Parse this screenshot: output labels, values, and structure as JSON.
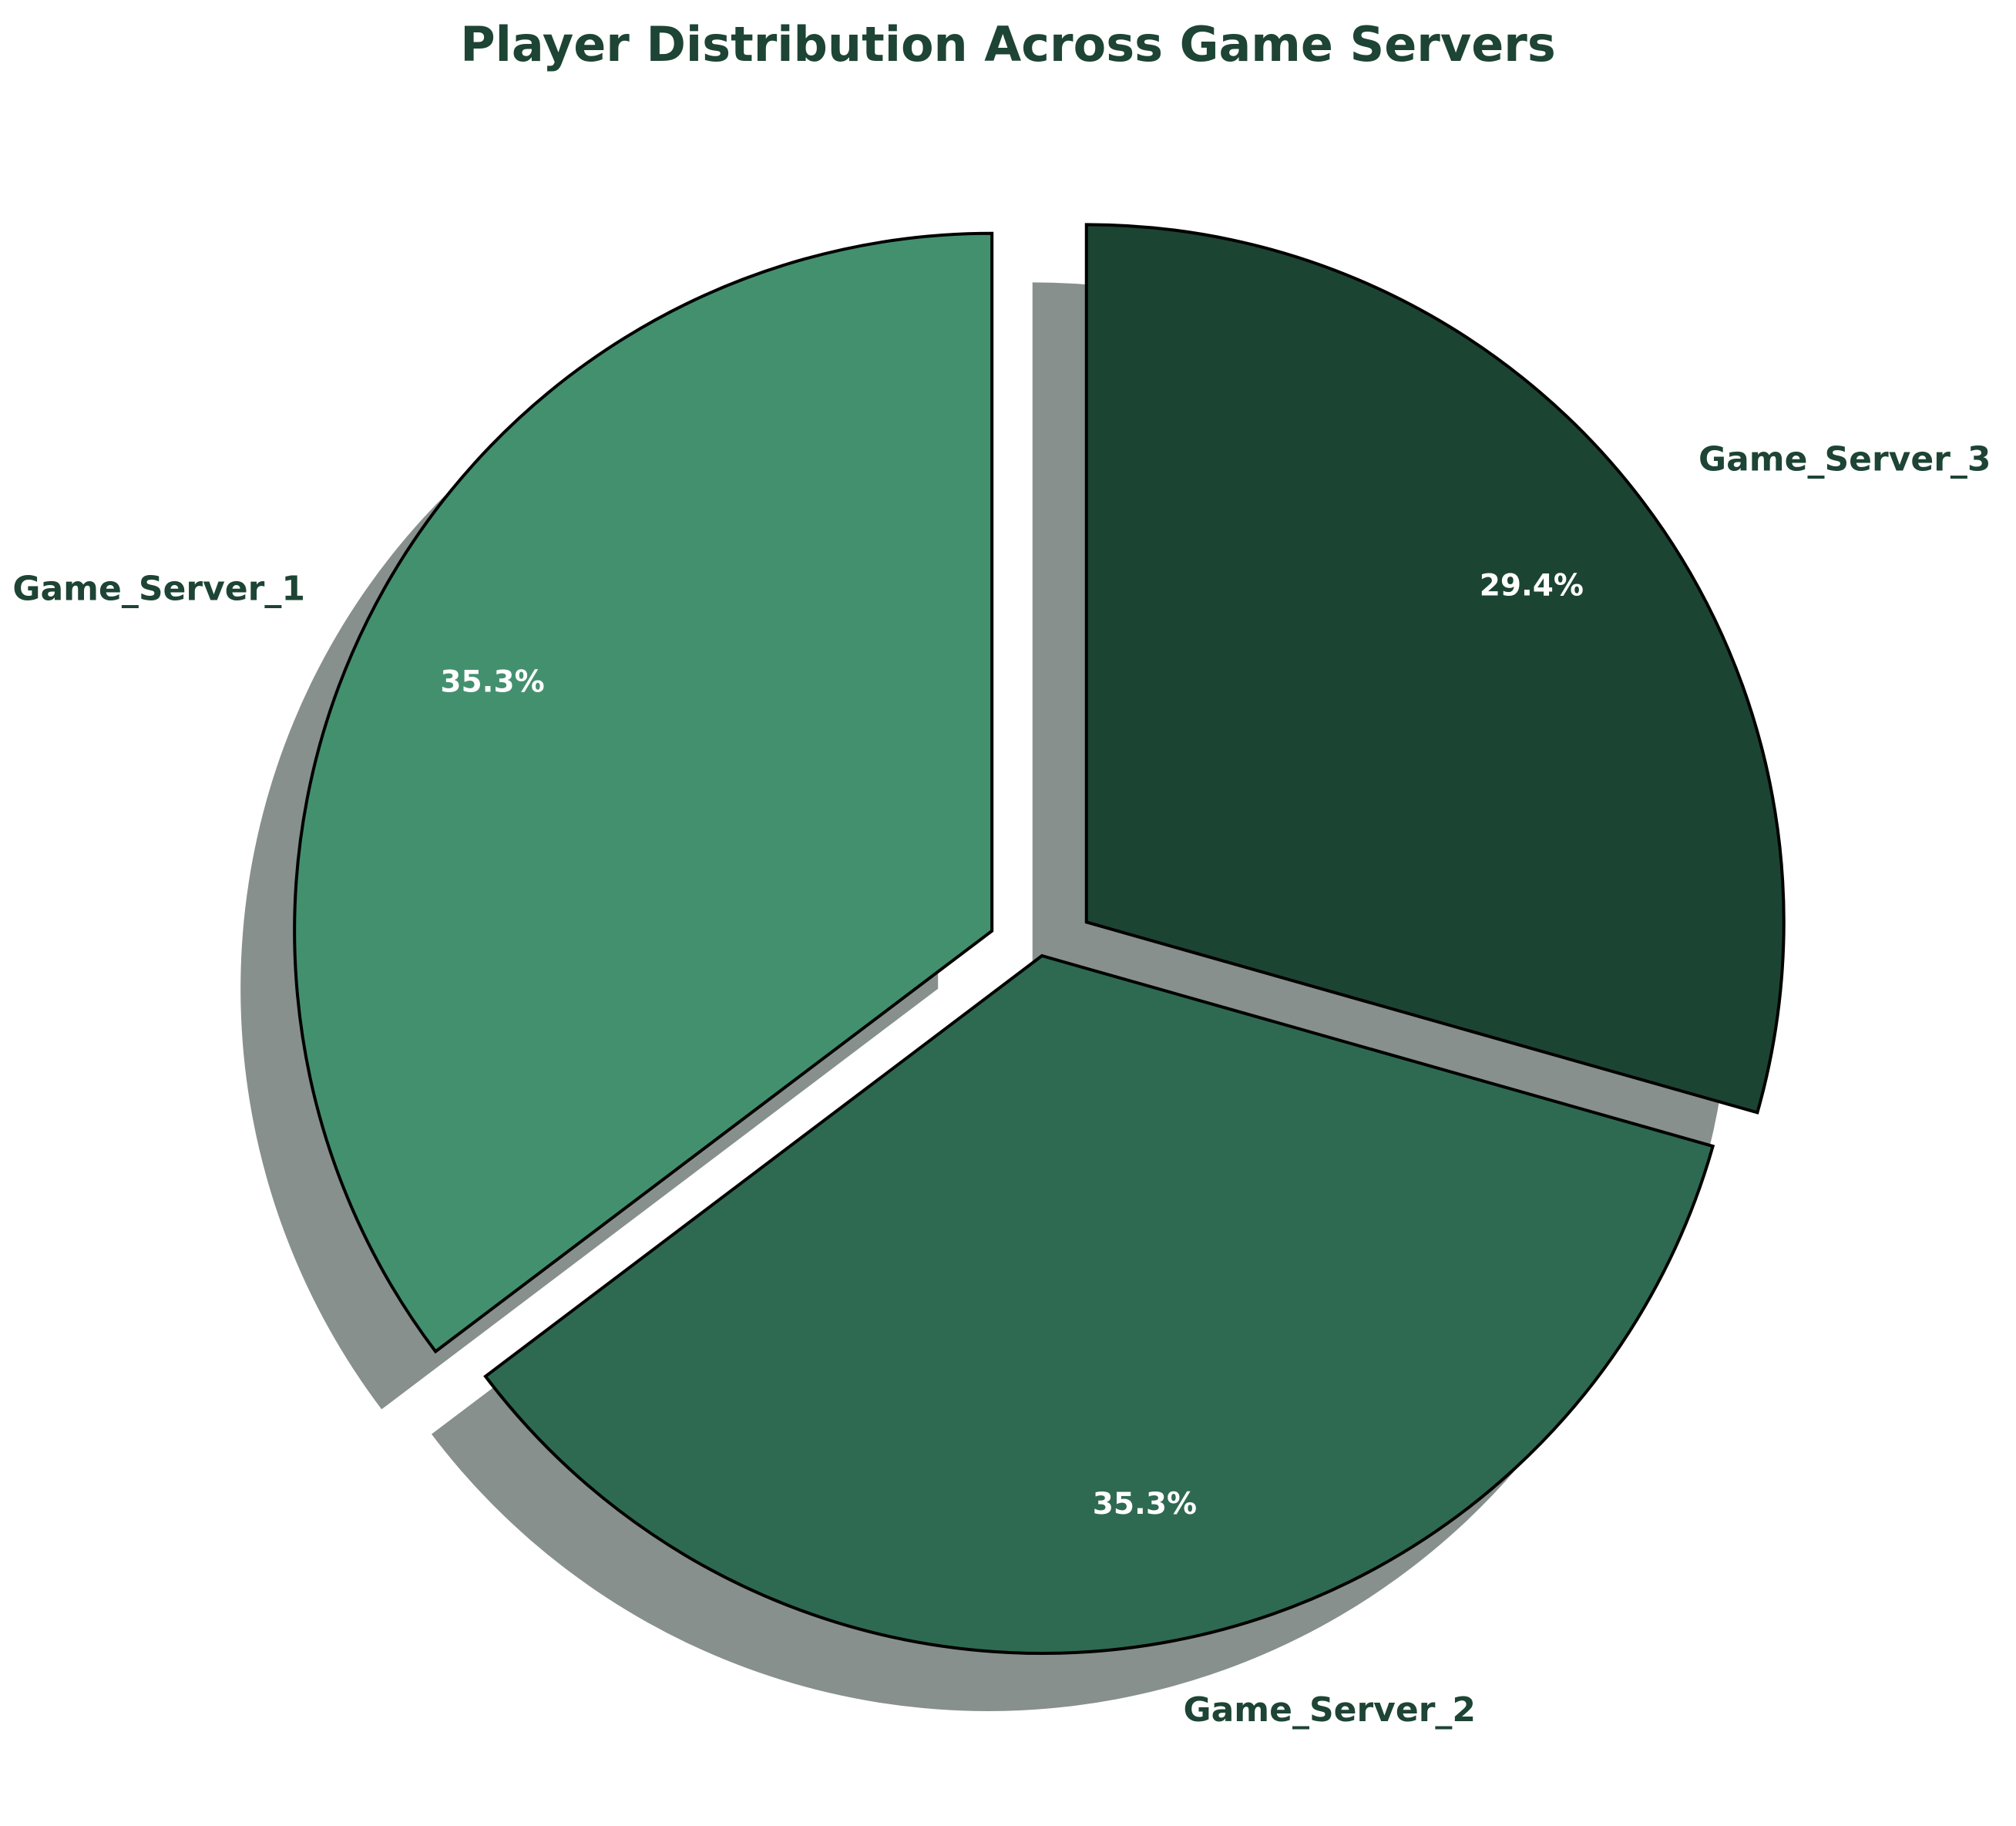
{
  "chart_data": {
    "type": "pie",
    "title": "Player Distribution Across Game Servers",
    "categories": [
      "Game_Server_1",
      "Game_Server_2",
      "Game_Server_3"
    ],
    "values": [
      35.3,
      35.3,
      29.4
    ],
    "percent_labels": [
      "35.3%",
      "35.3%",
      "29.4%"
    ],
    "colors": [
      "#43906f",
      "#2e6a51",
      "#1c4432"
    ],
    "exploded": [
      true,
      false,
      true
    ],
    "shadow": true,
    "start_angle_deg": 90,
    "direction": "counterclockwise",
    "label_color": "#1d4435",
    "pct_label_color": "#ffffff",
    "edge_color": "#000000",
    "shadow_color": "#5f6b67"
  }
}
